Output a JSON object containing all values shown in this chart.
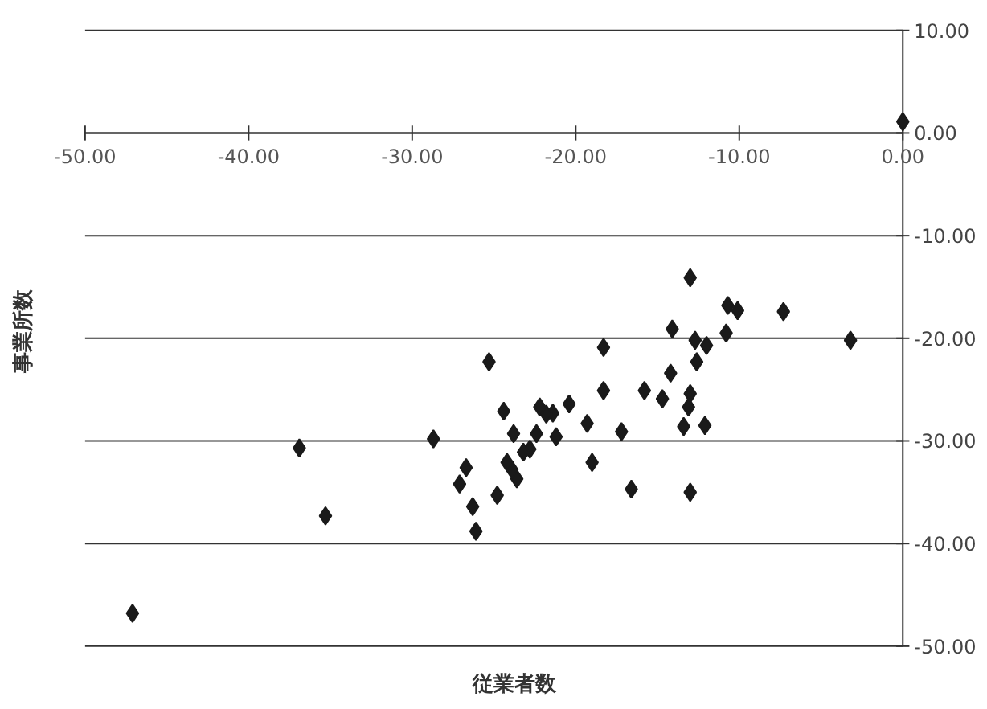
{
  "chart_data": {
    "type": "scatter",
    "xlabel": "従業者数",
    "ylabel": "事業所数",
    "xlim": [
      -50,
      0
    ],
    "ylim": [
      -50,
      10
    ],
    "xticks": [
      {
        "value": -50,
        "label": "-50.00"
      },
      {
        "value": -40,
        "label": "-40.00"
      },
      {
        "value": -30,
        "label": "-30.00"
      },
      {
        "value": -20,
        "label": "-20.00"
      },
      {
        "value": -10,
        "label": "-10.00"
      },
      {
        "value": 0,
        "label": "0.00"
      }
    ],
    "yticks": [
      {
        "value": -50,
        "label": "-50.00"
      },
      {
        "value": -40,
        "label": "-40.00"
      },
      {
        "value": -30,
        "label": "-30.00"
      },
      {
        "value": -20,
        "label": "-20.00"
      },
      {
        "value": -10,
        "label": "-10.00"
      },
      {
        "value": 0,
        "label": "0.00"
      },
      {
        "value": 10,
        "label": "10.00"
      }
    ],
    "grid": "y",
    "marker": "diamond",
    "series": [
      {
        "color": "#1a1a1a",
        "x": [
          -13.0,
          -10.7,
          -10.1,
          -7.3,
          -3.2,
          -14.1,
          -12.7,
          -12.0,
          -10.8,
          -12.6,
          -14.2,
          -13.0,
          -13.1,
          -14.7,
          -15.8,
          -13.4,
          -12.1,
          -13.0,
          -16.6,
          -17.2,
          -18.3,
          -18.3,
          -19.0,
          -19.3,
          -20.4,
          -21.2,
          -21.4,
          -21.8,
          -22.2,
          -22.4,
          -22.8,
          -23.2,
          -23.6,
          -23.9,
          -24.2,
          -23.8,
          -24.4,
          -25.3,
          -24.8,
          -26.1,
          -26.3,
          -26.7,
          -27.1,
          -36.9,
          -28.7,
          -35.3,
          -47.1,
          0.0
        ],
        "values": [
          -14.1,
          -16.8,
          -17.3,
          -17.4,
          -20.2,
          -19.1,
          -20.2,
          -20.7,
          -19.5,
          -22.3,
          -23.4,
          -25.4,
          -26.7,
          -25.9,
          -25.1,
          -28.6,
          -28.5,
          -35.0,
          -34.7,
          -29.1,
          -20.9,
          -25.1,
          -32.1,
          -28.3,
          -26.4,
          -29.6,
          -27.3,
          -27.4,
          -26.7,
          -29.3,
          -30.8,
          -31.1,
          -33.7,
          -32.8,
          -32.1,
          -29.3,
          -27.1,
          -22.3,
          -35.3,
          -38.8,
          -36.4,
          -32.6,
          -34.2,
          -30.7,
          -29.8,
          -37.3,
          -46.8,
          1.1
        ]
      }
    ]
  }
}
